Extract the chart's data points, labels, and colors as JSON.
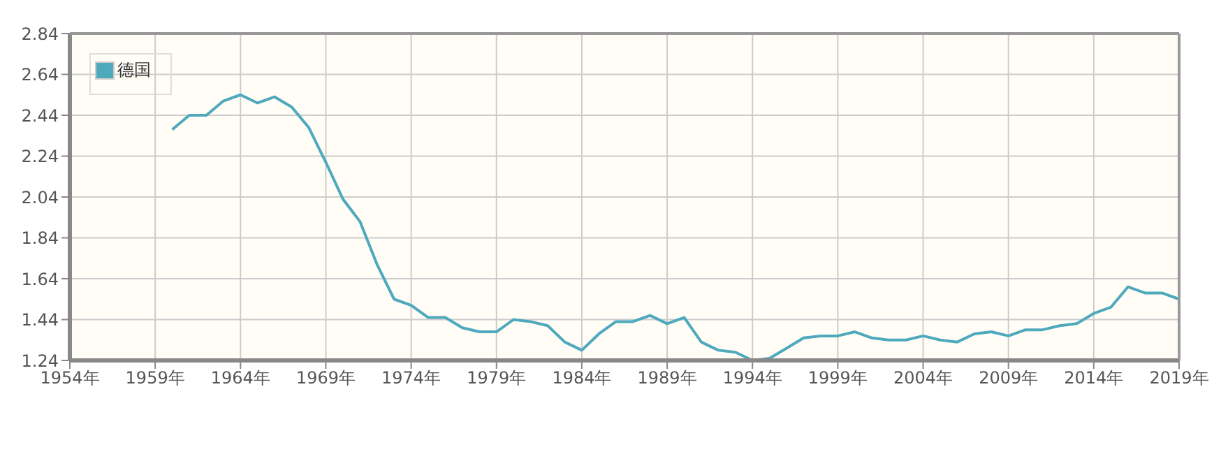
{
  "chart_data": {
    "type": "line",
    "x": [
      1960,
      1961,
      1962,
      1963,
      1964,
      1965,
      1966,
      1967,
      1968,
      1969,
      1970,
      1971,
      1972,
      1973,
      1974,
      1975,
      1976,
      1977,
      1978,
      1979,
      1980,
      1981,
      1982,
      1983,
      1984,
      1985,
      1986,
      1987,
      1988,
      1989,
      1990,
      1991,
      1992,
      1993,
      1994,
      1995,
      1996,
      1997,
      1998,
      1999,
      2000,
      2001,
      2002,
      2003,
      2004,
      2005,
      2006,
      2007,
      2008,
      2009,
      2010,
      2011,
      2012,
      2013,
      2014,
      2015,
      2016,
      2017,
      2018,
      2019
    ],
    "series": [
      {
        "name": "德国",
        "color": "#4fa9bd",
        "values": [
          2.37,
          2.44,
          2.44,
          2.51,
          2.54,
          2.5,
          2.53,
          2.48,
          2.38,
          2.21,
          2.03,
          1.92,
          1.71,
          1.54,
          1.51,
          1.45,
          1.45,
          1.4,
          1.38,
          1.38,
          1.44,
          1.43,
          1.41,
          1.33,
          1.29,
          1.37,
          1.43,
          1.43,
          1.46,
          1.42,
          1.45,
          1.33,
          1.29,
          1.28,
          1.24,
          1.25,
          1.3,
          1.35,
          1.36,
          1.36,
          1.38,
          1.35,
          1.34,
          1.34,
          1.36,
          1.34,
          1.33,
          1.37,
          1.38,
          1.36,
          1.39,
          1.39,
          1.41,
          1.42,
          1.47,
          1.5,
          1.6,
          1.57,
          1.57,
          1.54
        ]
      }
    ],
    "xlim": [
      1954,
      2019
    ],
    "xticks": [
      {
        "value": 1954,
        "label": "1954年"
      },
      {
        "value": 1959,
        "label": "1959年"
      },
      {
        "value": 1964,
        "label": "1964年"
      },
      {
        "value": 1969,
        "label": "1969年"
      },
      {
        "value": 1974,
        "label": "1974年"
      },
      {
        "value": 1979,
        "label": "1979年"
      },
      {
        "value": 1984,
        "label": "1984年"
      },
      {
        "value": 1989,
        "label": "1989年"
      },
      {
        "value": 1994,
        "label": "1994年"
      },
      {
        "value": 1999,
        "label": "1999年"
      },
      {
        "value": 2004,
        "label": "2004年"
      },
      {
        "value": 2009,
        "label": "2009年"
      },
      {
        "value": 2014,
        "label": "2014年"
      },
      {
        "value": 2019,
        "label": "2019年"
      }
    ],
    "ylim": [
      1.24,
      2.84
    ],
    "yticks": [
      1.24,
      1.44,
      1.64,
      1.84,
      2.04,
      2.24,
      2.44,
      2.64,
      2.84
    ],
    "grid": true,
    "legend": "top left",
    "marker": "none",
    "line_style": "solid"
  }
}
